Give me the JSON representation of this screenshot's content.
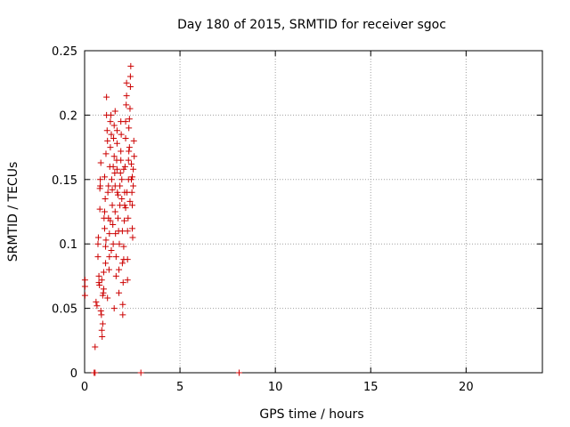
{
  "chart_data": {
    "type": "scatter",
    "title": "Day 180 of 2015, SRMTID for receiver sgoc",
    "xlabel": "GPS time / hours",
    "ylabel": "SRMTID / TECUs",
    "xlim": [
      0,
      24
    ],
    "ylim": [
      0,
      0.25
    ],
    "x_ticks": [
      0,
      5,
      10,
      15,
      20
    ],
    "x_tick_labels": [
      "0",
      "5",
      "10",
      "15",
      "20"
    ],
    "y_ticks": [
      0,
      0.05,
      0.1,
      0.15,
      0.2,
      0.25
    ],
    "y_tick_labels": [
      "0",
      "0.05",
      "0.1",
      "0.15",
      "0.2",
      "0.25"
    ],
    "grid": true,
    "marker": "plus",
    "marker_color": "#cc0000",
    "points": [
      [
        0.02,
        0.072
      ],
      [
        0.02,
        0.067
      ],
      [
        0.02,
        0.06
      ],
      [
        0.5,
        0.0
      ],
      [
        0.55,
        0.0
      ],
      [
        2.95,
        0.0
      ],
      [
        8.1,
        0.0
      ],
      [
        0.55,
        0.02
      ],
      [
        0.6,
        0.055
      ],
      [
        0.65,
        0.052
      ],
      [
        0.7,
        0.09
      ],
      [
        0.7,
        0.1
      ],
      [
        0.72,
        0.105
      ],
      [
        0.75,
        0.075
      ],
      [
        0.75,
        0.07
      ],
      [
        0.78,
        0.068
      ],
      [
        0.8,
        0.127
      ],
      [
        0.8,
        0.143
      ],
      [
        0.82,
        0.145
      ],
      [
        0.82,
        0.15
      ],
      [
        0.85,
        0.163
      ],
      [
        0.85,
        0.048
      ],
      [
        0.88,
        0.045
      ],
      [
        0.9,
        0.033
      ],
      [
        0.92,
        0.028
      ],
      [
        0.95,
        0.038
      ],
      [
        0.95,
        0.06
      ],
      [
        0.98,
        0.062
      ],
      [
        1.0,
        0.065
      ],
      [
        1.0,
        0.078
      ],
      [
        1.02,
        0.12
      ],
      [
        1.05,
        0.125
      ],
      [
        1.05,
        0.112
      ],
      [
        1.08,
        0.135
      ],
      [
        1.1,
        0.085
      ],
      [
        1.1,
        0.098
      ],
      [
        1.12,
        0.17
      ],
      [
        1.15,
        0.2
      ],
      [
        1.15,
        0.214
      ],
      [
        1.18,
        0.188
      ],
      [
        1.2,
        0.18
      ],
      [
        1.22,
        0.14
      ],
      [
        1.25,
        0.145
      ],
      [
        1.25,
        0.12
      ],
      [
        1.28,
        0.08
      ],
      [
        1.3,
        0.09
      ],
      [
        1.3,
        0.108
      ],
      [
        1.32,
        0.16
      ],
      [
        1.35,
        0.175
      ],
      [
        1.35,
        0.195
      ],
      [
        1.38,
        0.2
      ],
      [
        1.4,
        0.185
      ],
      [
        1.42,
        0.15
      ],
      [
        1.45,
        0.142
      ],
      [
        1.45,
        0.13
      ],
      [
        1.48,
        0.115
      ],
      [
        1.5,
        0.1
      ],
      [
        1.5,
        0.16
      ],
      [
        1.52,
        0.182
      ],
      [
        1.55,
        0.192
      ],
      [
        1.55,
        0.168
      ],
      [
        1.58,
        0.155
      ],
      [
        1.6,
        0.145
      ],
      [
        1.6,
        0.125
      ],
      [
        1.62,
        0.108
      ],
      [
        1.65,
        0.09
      ],
      [
        1.65,
        0.075
      ],
      [
        1.68,
        0.165
      ],
      [
        1.7,
        0.178
      ],
      [
        1.7,
        0.188
      ],
      [
        1.72,
        0.14
      ],
      [
        1.75,
        0.12
      ],
      [
        1.78,
        0.11
      ],
      [
        1.8,
        0.062
      ],
      [
        1.8,
        0.08
      ],
      [
        1.82,
        0.1
      ],
      [
        1.85,
        0.13
      ],
      [
        1.85,
        0.145
      ],
      [
        1.88,
        0.155
      ],
      [
        1.9,
        0.165
      ],
      [
        1.9,
        0.172
      ],
      [
        1.92,
        0.185
      ],
      [
        1.95,
        0.15
      ],
      [
        1.95,
        0.135
      ],
      [
        1.98,
        0.11
      ],
      [
        2.0,
        0.045
      ],
      [
        2.0,
        0.053
      ],
      [
        2.02,
        0.07
      ],
      [
        2.05,
        0.088
      ],
      [
        2.05,
        0.098
      ],
      [
        2.08,
        0.118
      ],
      [
        2.1,
        0.13
      ],
      [
        2.1,
        0.14
      ],
      [
        2.12,
        0.16
      ],
      [
        2.15,
        0.182
      ],
      [
        2.15,
        0.195
      ],
      [
        2.18,
        0.208
      ],
      [
        2.2,
        0.215
      ],
      [
        2.2,
        0.225
      ],
      [
        2.22,
        0.14
      ],
      [
        2.25,
        0.088
      ],
      [
        2.25,
        0.072
      ],
      [
        2.28,
        0.12
      ],
      [
        2.3,
        0.15
      ],
      [
        2.3,
        0.165
      ],
      [
        2.32,
        0.172
      ],
      [
        2.35,
        0.175
      ],
      [
        2.35,
        0.197
      ],
      [
        2.38,
        0.205
      ],
      [
        2.4,
        0.222
      ],
      [
        2.4,
        0.23
      ],
      [
        2.42,
        0.238
      ],
      [
        2.45,
        0.162
      ],
      [
        2.45,
        0.15
      ],
      [
        2.48,
        0.14
      ],
      [
        2.5,
        0.13
      ],
      [
        2.5,
        0.112
      ],
      [
        2.52,
        0.105
      ],
      [
        2.55,
        0.158
      ],
      [
        2.55,
        0.145
      ],
      [
        2.58,
        0.18
      ],
      [
        2.6,
        0.168
      ],
      [
        1.05,
        0.152
      ],
      [
        1.2,
        0.058
      ],
      [
        1.4,
        0.095
      ],
      [
        1.6,
        0.203
      ],
      [
        1.75,
        0.138
      ],
      [
        1.9,
        0.195
      ],
      [
        2.05,
        0.158
      ],
      [
        2.25,
        0.11
      ],
      [
        2.38,
        0.133
      ],
      [
        0.9,
        0.072
      ],
      [
        1.12,
        0.103
      ],
      [
        1.35,
        0.118
      ],
      [
        1.55,
        0.05
      ],
      [
        1.7,
        0.158
      ],
      [
        1.98,
        0.085
      ],
      [
        2.15,
        0.128
      ],
      [
        2.32,
        0.19
      ],
      [
        2.5,
        0.152
      ]
    ]
  }
}
